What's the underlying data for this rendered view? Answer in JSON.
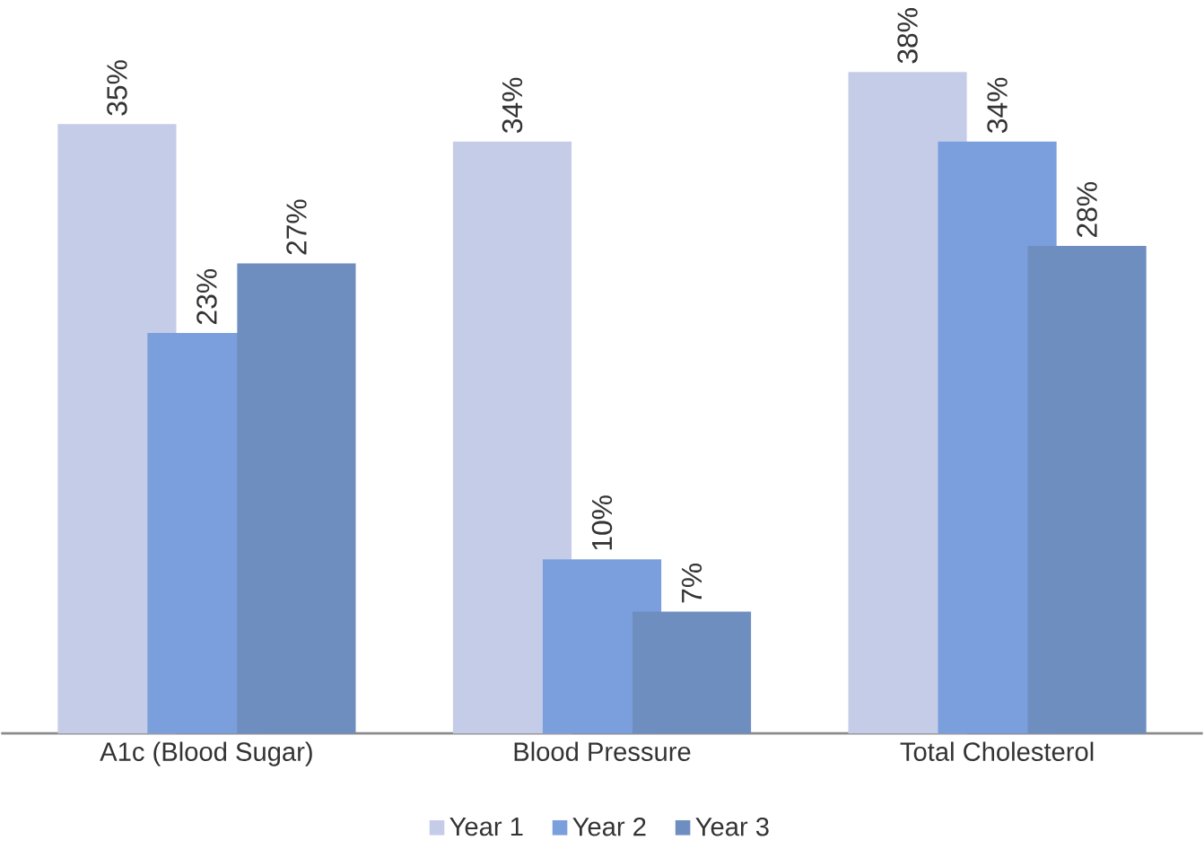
{
  "chart_data": {
    "type": "bar",
    "categories": [
      "A1c (Blood Sugar)",
      "Blood Pressure",
      "Total Cholesterol"
    ],
    "series": [
      {
        "name": "Year 1",
        "color": "#c5cce8",
        "values": [
          35,
          34,
          38
        ],
        "value_labels": [
          "35%",
          "34%",
          "38%"
        ]
      },
      {
        "name": "Year 2",
        "color": "#7a9fdc",
        "values": [
          23,
          10,
          34
        ],
        "value_labels": [
          "23%",
          "10%",
          "34%"
        ]
      },
      {
        "name": "Year 3",
        "color": "#6f8ec0",
        "values": [
          27,
          7,
          28
        ],
        "value_labels": [
          "27%",
          "7%",
          "28%"
        ]
      }
    ],
    "legend": "bottom"
  }
}
